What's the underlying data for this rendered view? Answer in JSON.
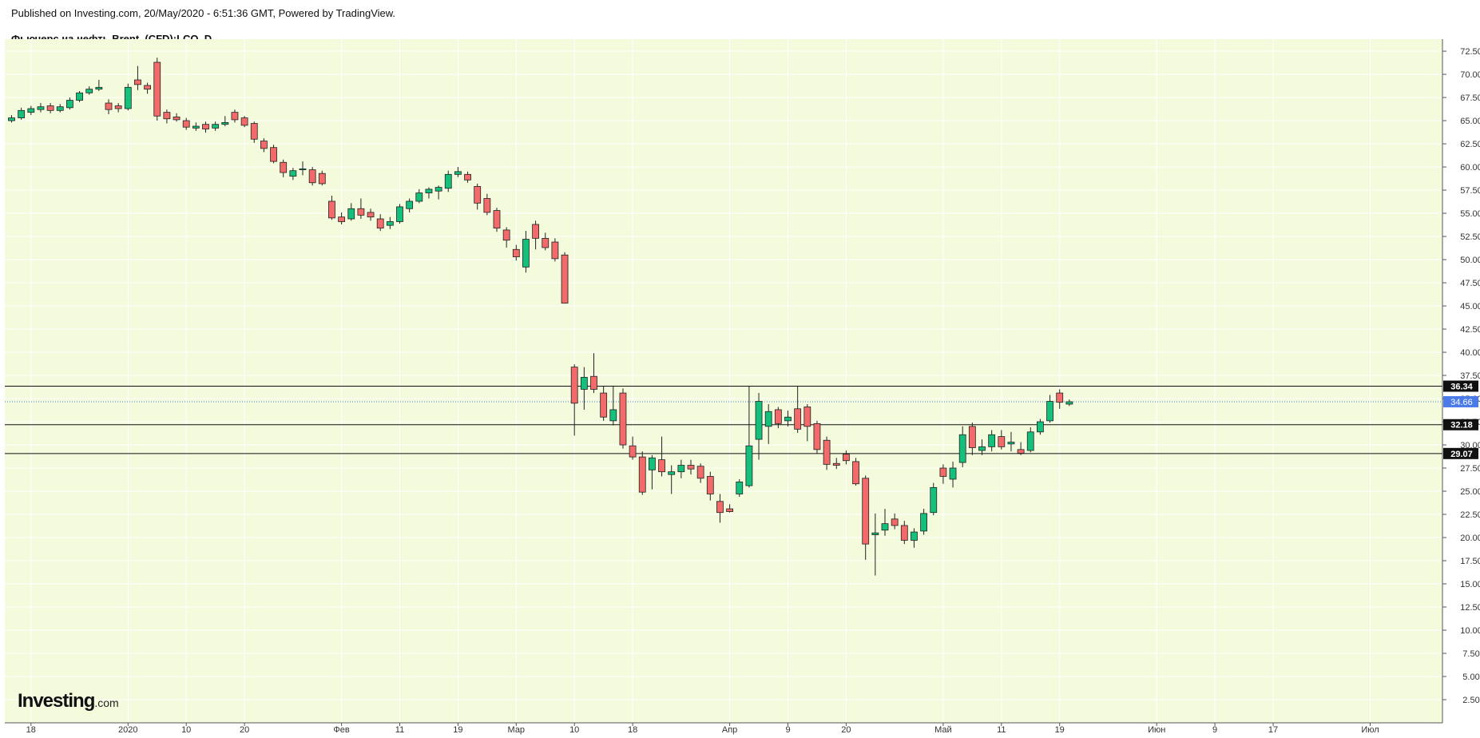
{
  "header": {
    "published": "Published on Investing.com, 20/May/2020 - 6:51:36 GMT, Powered by TradingView.",
    "symbol": "Фьючерс на нефть Brent, (CFD):LCO, D"
  },
  "logo": {
    "main": "Investing",
    "suffix": ".com"
  },
  "colors": {
    "background": "#f3fbdc",
    "up": "#14c07b",
    "down": "#f26a6a",
    "wick": "#222222",
    "grid": "#ffffff",
    "last_price_label": "#4a7be8",
    "level_label": "#111111",
    "level_line": "#111111"
  },
  "chart_data": {
    "type": "candlestick",
    "title": "Фьючерс на нефть Brent, (CFD):LCO, D",
    "ylim": [
      0,
      73.8
    ],
    "y_ticks": [
      "2.50",
      "5.00",
      "7.50",
      "10.00",
      "12.50",
      "15.00",
      "17.50",
      "20.00",
      "22.50",
      "25.00",
      "27.50",
      "30.00",
      "32.50",
      "35.00",
      "37.50",
      "40.00",
      "42.50",
      "45.00",
      "47.50",
      "50.00",
      "52.50",
      "55.00",
      "57.50",
      "60.00",
      "62.50",
      "65.00",
      "67.50",
      "70.00",
      "72.50"
    ],
    "x_ticks": [
      {
        "label": "18",
        "idx": 2
      },
      {
        "label": "2020",
        "idx": 12
      },
      {
        "label": "10",
        "idx": 18
      },
      {
        "label": "20",
        "idx": 24
      },
      {
        "label": "Фев",
        "idx": 34
      },
      {
        "label": "11",
        "idx": 40
      },
      {
        "label": "19",
        "idx": 46
      },
      {
        "label": "Мар",
        "idx": 52
      },
      {
        "label": "10",
        "idx": 58
      },
      {
        "label": "18",
        "idx": 64
      },
      {
        "label": "Апр",
        "idx": 74
      },
      {
        "label": "9",
        "idx": 80
      },
      {
        "label": "20",
        "idx": 86
      },
      {
        "label": "Май",
        "idx": 96
      },
      {
        "label": "11",
        "idx": 102
      },
      {
        "label": "19",
        "idx": 108
      },
      {
        "label": "Июн",
        "idx": 118
      },
      {
        "label": "9",
        "idx": 124
      },
      {
        "label": "17",
        "idx": 130
      },
      {
        "label": "Июл",
        "idx": 140
      }
    ],
    "horizontal_levels": [
      {
        "value": 36.34,
        "label": "36.34",
        "style": "solid"
      },
      {
        "value": 32.18,
        "label": "32.18",
        "style": "solid"
      },
      {
        "value": 29.07,
        "label": "29.07",
        "style": "solid"
      }
    ],
    "last_price": {
      "value": 34.66,
      "label": "34.66",
      "style": "dotted"
    },
    "candles": [
      {
        "idx": 0,
        "o": 65.0,
        "h": 65.6,
        "l": 64.8,
        "c": 65.3
      },
      {
        "idx": 1,
        "o": 65.3,
        "h": 66.4,
        "l": 65.1,
        "c": 66.1
      },
      {
        "idx": 2,
        "o": 65.9,
        "h": 66.6,
        "l": 65.6,
        "c": 66.3
      },
      {
        "idx": 3,
        "o": 66.2,
        "h": 66.9,
        "l": 65.9,
        "c": 66.5
      },
      {
        "idx": 4,
        "o": 66.6,
        "h": 66.9,
        "l": 65.8,
        "c": 66.1
      },
      {
        "idx": 5,
        "o": 66.1,
        "h": 66.8,
        "l": 65.9,
        "c": 66.5
      },
      {
        "idx": 6,
        "o": 66.4,
        "h": 67.5,
        "l": 66.2,
        "c": 67.2
      },
      {
        "idx": 7,
        "o": 67.2,
        "h": 68.2,
        "l": 67.0,
        "c": 68.0
      },
      {
        "idx": 8,
        "o": 68.0,
        "h": 68.7,
        "l": 67.8,
        "c": 68.4
      },
      {
        "idx": 9,
        "o": 68.4,
        "h": 69.4,
        "l": 68.2,
        "c": 68.6
      },
      {
        "idx": 10,
        "o": 66.9,
        "h": 67.3,
        "l": 65.7,
        "c": 66.2
      },
      {
        "idx": 11,
        "o": 66.6,
        "h": 66.9,
        "l": 65.9,
        "c": 66.3
      },
      {
        "idx": 12,
        "o": 66.3,
        "h": 69.0,
        "l": 66.1,
        "c": 68.6
      },
      {
        "idx": 13,
        "o": 69.4,
        "h": 70.9,
        "l": 68.3,
        "c": 68.9
      },
      {
        "idx": 14,
        "o": 68.8,
        "h": 69.1,
        "l": 67.9,
        "c": 68.4
      },
      {
        "idx": 15,
        "o": 71.3,
        "h": 71.8,
        "l": 65.0,
        "c": 65.5
      },
      {
        "idx": 16,
        "o": 65.9,
        "h": 66.2,
        "l": 64.7,
        "c": 65.2
      },
      {
        "idx": 17,
        "o": 65.4,
        "h": 65.8,
        "l": 64.9,
        "c": 65.1
      },
      {
        "idx": 18,
        "o": 65.0,
        "h": 65.3,
        "l": 64.0,
        "c": 64.3
      },
      {
        "idx": 19,
        "o": 64.2,
        "h": 64.8,
        "l": 63.9,
        "c": 64.4
      },
      {
        "idx": 20,
        "o": 64.6,
        "h": 64.9,
        "l": 63.7,
        "c": 64.1
      },
      {
        "idx": 21,
        "o": 64.2,
        "h": 64.9,
        "l": 63.9,
        "c": 64.6
      },
      {
        "idx": 22,
        "o": 64.6,
        "h": 65.5,
        "l": 64.4,
        "c": 64.8
      },
      {
        "idx": 23,
        "o": 65.9,
        "h": 66.2,
        "l": 64.8,
        "c": 65.1
      },
      {
        "idx": 24,
        "o": 65.3,
        "h": 65.5,
        "l": 64.3,
        "c": 64.5
      },
      {
        "idx": 25,
        "o": 64.7,
        "h": 64.9,
        "l": 62.6,
        "c": 63.0
      },
      {
        "idx": 26,
        "o": 62.8,
        "h": 63.1,
        "l": 61.6,
        "c": 62.0
      },
      {
        "idx": 27,
        "o": 62.1,
        "h": 62.4,
        "l": 60.4,
        "c": 60.6
      },
      {
        "idx": 28,
        "o": 60.5,
        "h": 60.8,
        "l": 58.9,
        "c": 59.4
      },
      {
        "idx": 29,
        "o": 59.0,
        "h": 59.9,
        "l": 58.6,
        "c": 59.6
      },
      {
        "idx": 30,
        "o": 59.7,
        "h": 60.6,
        "l": 59.1,
        "c": 59.8
      },
      {
        "idx": 31,
        "o": 59.7,
        "h": 60.0,
        "l": 58.0,
        "c": 58.3
      },
      {
        "idx": 32,
        "o": 59.3,
        "h": 59.6,
        "l": 58.0,
        "c": 58.2
      },
      {
        "idx": 33,
        "o": 56.3,
        "h": 56.9,
        "l": 54.3,
        "c": 54.5
      },
      {
        "idx": 34,
        "o": 54.6,
        "h": 55.1,
        "l": 53.8,
        "c": 54.1
      },
      {
        "idx": 35,
        "o": 54.4,
        "h": 56.1,
        "l": 54.2,
        "c": 55.5
      },
      {
        "idx": 36,
        "o": 55.5,
        "h": 56.6,
        "l": 54.4,
        "c": 54.8
      },
      {
        "idx": 37,
        "o": 55.1,
        "h": 55.5,
        "l": 54.2,
        "c": 54.6
      },
      {
        "idx": 38,
        "o": 54.4,
        "h": 54.9,
        "l": 53.1,
        "c": 53.4
      },
      {
        "idx": 39,
        "o": 53.7,
        "h": 54.6,
        "l": 53.3,
        "c": 54.1
      },
      {
        "idx": 40,
        "o": 54.1,
        "h": 56.0,
        "l": 53.9,
        "c": 55.7
      },
      {
        "idx": 41,
        "o": 55.5,
        "h": 56.6,
        "l": 55.1,
        "c": 56.3
      },
      {
        "idx": 42,
        "o": 56.3,
        "h": 57.6,
        "l": 56.1,
        "c": 57.2
      },
      {
        "idx": 43,
        "o": 57.2,
        "h": 57.8,
        "l": 56.6,
        "c": 57.6
      },
      {
        "idx": 44,
        "o": 57.4,
        "h": 58.0,
        "l": 56.5,
        "c": 57.8
      },
      {
        "idx": 45,
        "o": 57.7,
        "h": 59.6,
        "l": 57.3,
        "c": 59.2
      },
      {
        "idx": 46,
        "o": 59.2,
        "h": 60.0,
        "l": 58.9,
        "c": 59.5
      },
      {
        "idx": 47,
        "o": 59.2,
        "h": 59.5,
        "l": 58.3,
        "c": 58.6
      },
      {
        "idx": 48,
        "o": 57.9,
        "h": 58.2,
        "l": 55.4,
        "c": 56.1
      },
      {
        "idx": 49,
        "o": 56.6,
        "h": 57.1,
        "l": 54.8,
        "c": 55.1
      },
      {
        "idx": 50,
        "o": 55.3,
        "h": 55.6,
        "l": 53.0,
        "c": 53.4
      },
      {
        "idx": 51,
        "o": 53.2,
        "h": 53.5,
        "l": 51.3,
        "c": 52.1
      },
      {
        "idx": 52,
        "o": 51.1,
        "h": 51.6,
        "l": 49.9,
        "c": 50.3
      },
      {
        "idx": 53,
        "o": 49.2,
        "h": 53.1,
        "l": 48.6,
        "c": 52.2
      },
      {
        "idx": 54,
        "o": 53.8,
        "h": 54.2,
        "l": 51.1,
        "c": 52.3
      },
      {
        "idx": 55,
        "o": 52.3,
        "h": 52.9,
        "l": 51.0,
        "c": 51.3
      },
      {
        "idx": 56,
        "o": 51.9,
        "h": 52.3,
        "l": 49.8,
        "c": 50.1
      },
      {
        "idx": 57,
        "o": 50.5,
        "h": 50.8,
        "l": 45.3,
        "c": 45.3
      },
      {
        "idx": 58,
        "o": 38.4,
        "h": 38.7,
        "l": 31.0,
        "c": 34.5
      },
      {
        "idx": 59,
        "o": 36.0,
        "h": 38.4,
        "l": 33.8,
        "c": 37.3
      },
      {
        "idx": 60,
        "o": 37.4,
        "h": 39.9,
        "l": 35.6,
        "c": 36.0
      },
      {
        "idx": 61,
        "o": 35.6,
        "h": 36.3,
        "l": 32.6,
        "c": 33.0
      },
      {
        "idx": 62,
        "o": 32.6,
        "h": 36.4,
        "l": 32.1,
        "c": 33.8
      },
      {
        "idx": 63,
        "o": 35.6,
        "h": 36.1,
        "l": 29.6,
        "c": 30.0
      },
      {
        "idx": 64,
        "o": 29.9,
        "h": 30.9,
        "l": 28.4,
        "c": 28.7
      },
      {
        "idx": 65,
        "o": 28.7,
        "h": 29.3,
        "l": 24.6,
        "c": 24.9
      },
      {
        "idx": 66,
        "o": 27.3,
        "h": 28.9,
        "l": 25.2,
        "c": 28.6
      },
      {
        "idx": 67,
        "o": 28.4,
        "h": 30.9,
        "l": 26.6,
        "c": 27.1
      },
      {
        "idx": 68,
        "o": 26.8,
        "h": 27.8,
        "l": 24.7,
        "c": 27.1
      },
      {
        "idx": 69,
        "o": 27.1,
        "h": 28.4,
        "l": 26.4,
        "c": 27.8
      },
      {
        "idx": 70,
        "o": 27.8,
        "h": 28.4,
        "l": 26.8,
        "c": 27.4
      },
      {
        "idx": 71,
        "o": 27.7,
        "h": 28.0,
        "l": 25.9,
        "c": 26.4
      },
      {
        "idx": 72,
        "o": 26.6,
        "h": 27.1,
        "l": 24.0,
        "c": 24.7
      },
      {
        "idx": 73,
        "o": 23.9,
        "h": 24.7,
        "l": 21.6,
        "c": 22.7
      },
      {
        "idx": 74,
        "o": 23.1,
        "h": 23.6,
        "l": 22.7,
        "c": 22.8
      },
      {
        "idx": 75,
        "o": 24.7,
        "h": 26.3,
        "l": 24.4,
        "c": 26.0
      },
      {
        "idx": 76,
        "o": 25.6,
        "h": 36.3,
        "l": 25.4,
        "c": 29.9
      },
      {
        "idx": 77,
        "o": 30.6,
        "h": 35.6,
        "l": 28.4,
        "c": 34.7
      },
      {
        "idx": 78,
        "o": 32.0,
        "h": 34.4,
        "l": 30.1,
        "c": 33.6
      },
      {
        "idx": 79,
        "o": 33.8,
        "h": 34.1,
        "l": 31.8,
        "c": 32.3
      },
      {
        "idx": 80,
        "o": 32.6,
        "h": 33.7,
        "l": 32.0,
        "c": 33.0
      },
      {
        "idx": 81,
        "o": 33.9,
        "h": 36.3,
        "l": 31.3,
        "c": 31.7
      },
      {
        "idx": 82,
        "o": 34.1,
        "h": 34.4,
        "l": 30.4,
        "c": 32.0
      },
      {
        "idx": 83,
        "o": 32.3,
        "h": 32.6,
        "l": 29.1,
        "c": 29.5
      },
      {
        "idx": 84,
        "o": 30.5,
        "h": 30.9,
        "l": 27.3,
        "c": 27.9
      },
      {
        "idx": 85,
        "o": 28.0,
        "h": 28.6,
        "l": 27.4,
        "c": 27.8
      },
      {
        "idx": 86,
        "o": 29.0,
        "h": 29.4,
        "l": 27.9,
        "c": 28.3
      },
      {
        "idx": 87,
        "o": 28.2,
        "h": 28.6,
        "l": 25.6,
        "c": 25.8
      },
      {
        "idx": 88,
        "o": 26.4,
        "h": 26.7,
        "l": 17.6,
        "c": 19.3
      },
      {
        "idx": 89,
        "o": 20.3,
        "h": 22.6,
        "l": 15.9,
        "c": 20.5
      },
      {
        "idx": 90,
        "o": 20.8,
        "h": 23.1,
        "l": 20.2,
        "c": 21.5
      },
      {
        "idx": 91,
        "o": 22.0,
        "h": 22.6,
        "l": 20.9,
        "c": 21.3
      },
      {
        "idx": 92,
        "o": 21.3,
        "h": 21.8,
        "l": 19.3,
        "c": 19.7
      },
      {
        "idx": 93,
        "o": 19.7,
        "h": 21.0,
        "l": 18.9,
        "c": 20.6
      },
      {
        "idx": 94,
        "o": 20.7,
        "h": 23.1,
        "l": 20.3,
        "c": 22.6
      },
      {
        "idx": 95,
        "o": 22.7,
        "h": 25.9,
        "l": 22.4,
        "c": 25.4
      },
      {
        "idx": 96,
        "o": 27.5,
        "h": 27.9,
        "l": 25.8,
        "c": 26.6
      },
      {
        "idx": 97,
        "o": 26.3,
        "h": 28.2,
        "l": 25.4,
        "c": 27.5
      },
      {
        "idx": 98,
        "o": 28.1,
        "h": 32.0,
        "l": 27.6,
        "c": 31.1
      },
      {
        "idx": 99,
        "o": 32.0,
        "h": 32.4,
        "l": 28.9,
        "c": 29.7
      },
      {
        "idx": 100,
        "o": 29.4,
        "h": 30.6,
        "l": 28.9,
        "c": 29.8
      },
      {
        "idx": 101,
        "o": 29.8,
        "h": 31.6,
        "l": 29.3,
        "c": 31.1
      },
      {
        "idx": 102,
        "o": 30.9,
        "h": 31.6,
        "l": 29.5,
        "c": 29.8
      },
      {
        "idx": 103,
        "o": 30.1,
        "h": 31.4,
        "l": 29.3,
        "c": 30.3
      },
      {
        "idx": 104,
        "o": 29.5,
        "h": 30.3,
        "l": 28.9,
        "c": 29.1
      },
      {
        "idx": 105,
        "o": 29.4,
        "h": 31.9,
        "l": 29.2,
        "c": 31.4
      },
      {
        "idx": 106,
        "o": 31.4,
        "h": 32.8,
        "l": 31.1,
        "c": 32.5
      },
      {
        "idx": 107,
        "o": 32.6,
        "h": 35.4,
        "l": 32.4,
        "c": 34.7
      },
      {
        "idx": 108,
        "o": 35.6,
        "h": 36.0,
        "l": 33.9,
        "c": 34.6
      },
      {
        "idx": 109,
        "o": 34.4,
        "h": 34.9,
        "l": 34.2,
        "c": 34.66
      }
    ]
  }
}
